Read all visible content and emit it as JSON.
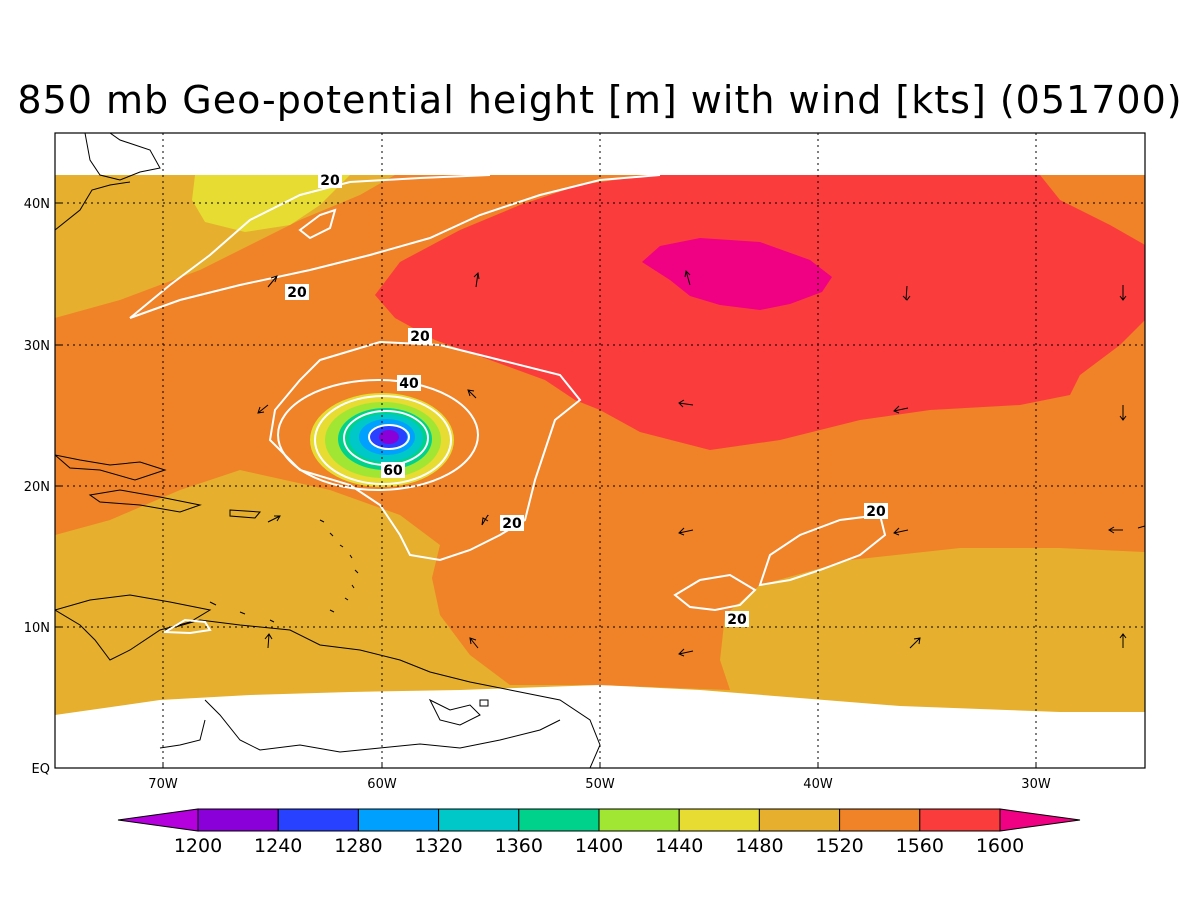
{
  "title": "850 mb Geo-potential height [m] with wind [kts] (051700)",
  "x_ticks": [
    "70W",
    "60W",
    "50W",
    "40W",
    "30W"
  ],
  "y_ticks": [
    "40N",
    "30N",
    "20N",
    "10N",
    "EQ"
  ],
  "colorbar": {
    "labels": [
      "1200",
      "1240",
      "1280",
      "1320",
      "1360",
      "1400",
      "1440",
      "1480",
      "1520",
      "1560",
      "1600"
    ],
    "colors": [
      "#8a00d8",
      "#2840ff",
      "#00a0ff",
      "#00c8c8",
      "#00d28c",
      "#a0e632",
      "#e6dc32",
      "#e6af2d",
      "#f08228",
      "#fa3c3c",
      "#f00082"
    ],
    "low_color": "#b400dc",
    "high_color": "#f00082"
  },
  "wind_contour_labels": [
    "20",
    "20",
    "20",
    "40",
    "60",
    "20",
    "20",
    "20"
  ]
}
